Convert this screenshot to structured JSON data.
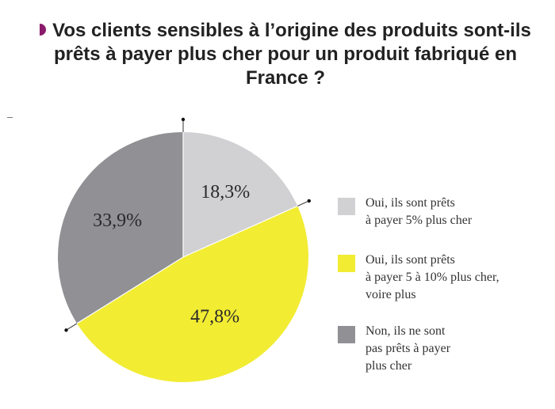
{
  "title": "Vos clients sensibles à l’origine des produits sont-ils prêts à payer plus cher pour un produit fabriqué en France ?",
  "chart_data": {
    "type": "pie",
    "slices": [
      {
        "label": "Oui, ils sont prêts\nà payer 5% plus cher",
        "value": 18.3,
        "value_label": "18,3%",
        "color": "#d1d1d3"
      },
      {
        "label": "Oui, ils sont prêts\nà payer 5 à 10% plus cher,\nvoire plus",
        "value": 47.8,
        "value_label": "47,8%",
        "color": "#f2ec33"
      },
      {
        "label": "Non, ils ne sont\npas prêts à payer\nplus cher",
        "value": 33.9,
        "value_label": "33,9%",
        "color": "#909095"
      }
    ],
    "start_angle": "12 o'clock",
    "direction": "clockwise",
    "legend_position": "right"
  }
}
